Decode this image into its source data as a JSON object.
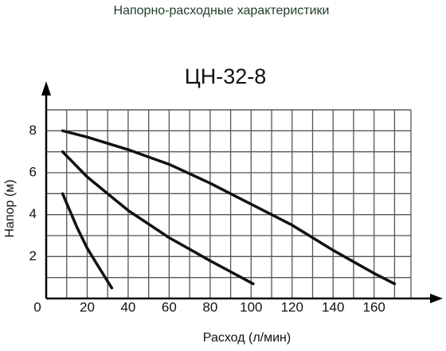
{
  "chart_data": {
    "type": "line",
    "title": "Напорно-расходные характеристики",
    "subtitle": "ЦН-32-8",
    "x_label": "Расход (л/мин)",
    "y_label": "Напор (м)",
    "xlim": [
      0,
      178
    ],
    "ylim": [
      0,
      9
    ],
    "xticks": [
      0,
      20,
      40,
      60,
      80,
      100,
      120,
      140,
      160
    ],
    "yticks": [
      2,
      4,
      6,
      8
    ],
    "grid": true,
    "series": [
      {
        "color": "#111111",
        "x": [
          8,
          20,
          40,
          60,
          80,
          100,
          120,
          140,
          160,
          170
        ],
        "values": [
          8.0,
          7.7,
          7.1,
          6.4,
          5.5,
          4.5,
          3.5,
          2.3,
          1.2,
          0.7
        ]
      },
      {
        "color": "#111111",
        "x": [
          8,
          20,
          40,
          60,
          80,
          101
        ],
        "values": [
          7.0,
          5.8,
          4.2,
          2.9,
          1.8,
          0.7
        ]
      },
      {
        "color": "#111111",
        "x": [
          8,
          15,
          20,
          25,
          32
        ],
        "values": [
          5.0,
          3.4,
          2.4,
          1.6,
          0.5
        ]
      }
    ]
  }
}
